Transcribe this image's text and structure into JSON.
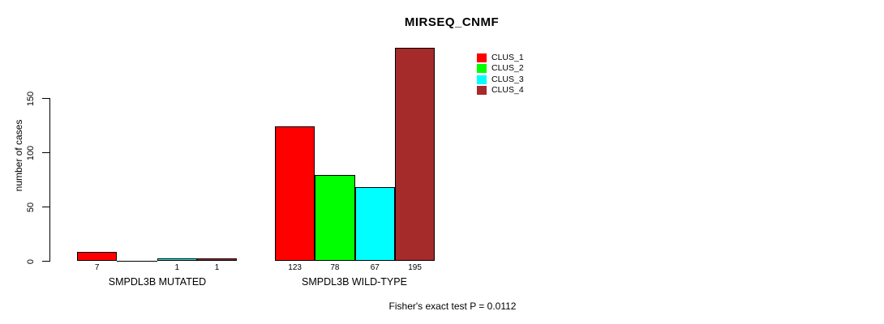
{
  "chart": {
    "title": "MIRSEQ_CNMF",
    "footnote": "Fisher's exact test P = 0.0112"
  },
  "chart_data": {
    "type": "bar",
    "title": "MIRSEQ_CNMF",
    "xlabel": "",
    "ylabel": "number of cases",
    "categories": [
      "SMPDL3B MUTATED",
      "SMPDL3B WILD-TYPE"
    ],
    "series": [
      {
        "name": "CLUS_1",
        "color": "#ff0000",
        "values": [
          7,
          123
        ]
      },
      {
        "name": "CLUS_2",
        "color": "#00ff00",
        "values": [
          0,
          78
        ]
      },
      {
        "name": "CLUS_3",
        "color": "#00ffff",
        "values": [
          1,
          67
        ]
      },
      {
        "name": "CLUS_4",
        "color": "#a52a2a",
        "values": [
          1,
          195
        ]
      }
    ],
    "bar_labels": [
      [
        "7",
        "",
        "1",
        "1"
      ],
      [
        "123",
        "78",
        "67",
        "195"
      ]
    ],
    "y_axis": {
      "ticks": [
        0,
        50,
        100,
        150
      ],
      "label": "number of cases"
    },
    "ylim": [
      0,
      200
    ],
    "grid": false,
    "legend_position": "upper-right-inside",
    "annotation": "Fisher's exact test P = 0.0112",
    "bar_border_color": "#000000",
    "background_color": "#ffffff",
    "text_color": "#000000"
  }
}
